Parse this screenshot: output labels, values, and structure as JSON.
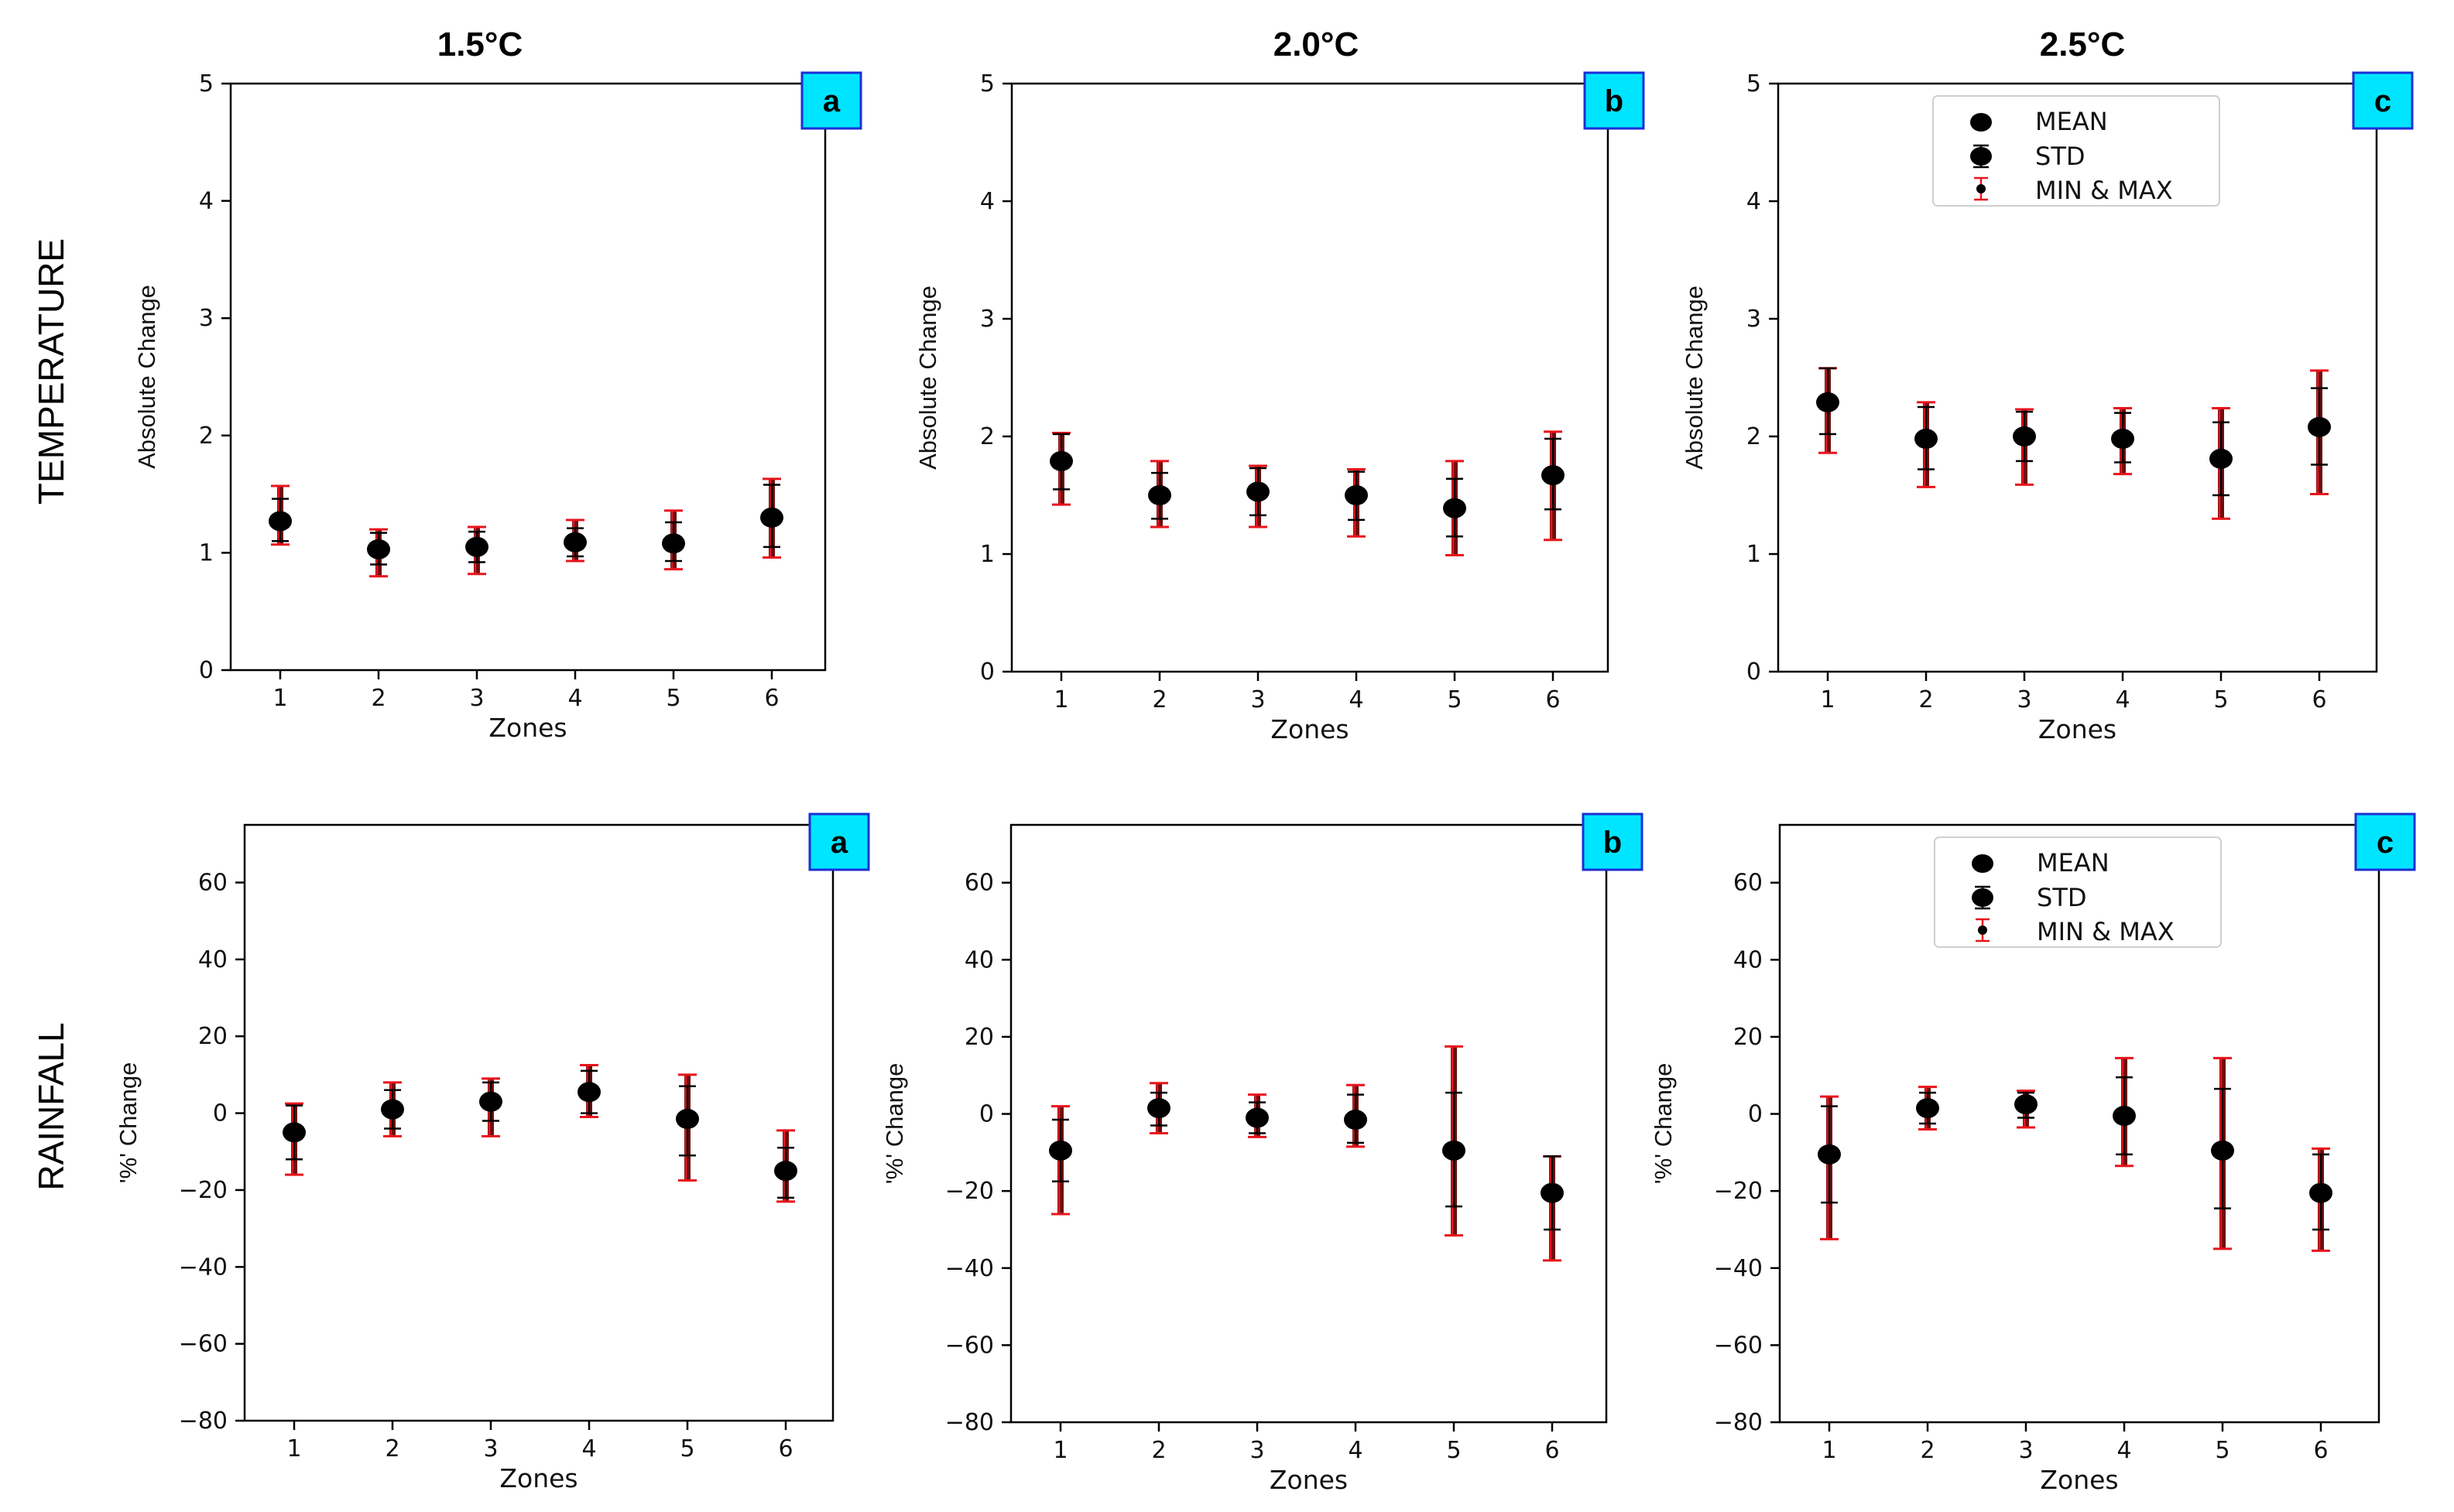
{
  "figure": {
    "column_titles": [
      "1.5°C",
      "2.0°C",
      "2.5°C"
    ],
    "row_titles": [
      "TEMPERATURE",
      "RAINFALL"
    ]
  },
  "colors": {
    "mean": "#000000",
    "std_bar": "#000000",
    "minmax_bar": "#e8141c",
    "minmax_fill": "#6b0f10",
    "badge_fill": "#00e5ff",
    "badge_border": "#1a2fd6",
    "axis": "#000000"
  },
  "legend": {
    "items": [
      "MEAN",
      "STD",
      "MIN & MAX"
    ]
  },
  "chart_data": [
    {
      "id": "temp-1.5",
      "type": "errorbar",
      "panel_letter": "a",
      "xlabel": "Zones",
      "ylabel": "Absolute Change",
      "ylim": [
        0,
        5
      ],
      "yticks": [
        0,
        1,
        2,
        3,
        4,
        5
      ],
      "x": [
        1,
        2,
        3,
        4,
        5,
        6
      ],
      "mean": [
        1.27,
        1.03,
        1.05,
        1.09,
        1.08,
        1.3
      ],
      "std_low": [
        1.1,
        0.9,
        0.92,
        0.97,
        0.93,
        1.05
      ],
      "std_high": [
        1.46,
        1.17,
        1.18,
        1.21,
        1.26,
        1.58
      ],
      "min": [
        1.07,
        0.8,
        0.82,
        0.93,
        0.86,
        0.96
      ],
      "max": [
        1.57,
        1.2,
        1.22,
        1.28,
        1.36,
        1.63
      ],
      "legend": false
    },
    {
      "id": "temp-2.0",
      "type": "errorbar",
      "panel_letter": "b",
      "xlabel": "Zones",
      "ylabel": "Absolute Change",
      "ylim": [
        0,
        5
      ],
      "yticks": [
        0,
        1,
        2,
        3,
        4,
        5
      ],
      "x": [
        1,
        2,
        3,
        4,
        5,
        6
      ],
      "mean": [
        1.79,
        1.5,
        1.53,
        1.5,
        1.39,
        1.67
      ],
      "std_low": [
        1.55,
        1.3,
        1.33,
        1.29,
        1.15,
        1.38
      ],
      "std_high": [
        2.02,
        1.69,
        1.73,
        1.7,
        1.64,
        1.98
      ],
      "min": [
        1.42,
        1.23,
        1.23,
        1.15,
        0.99,
        1.12
      ],
      "max": [
        2.03,
        1.79,
        1.75,
        1.72,
        1.79,
        2.04
      ],
      "legend": false
    },
    {
      "id": "temp-2.5",
      "type": "errorbar",
      "panel_letter": "c",
      "xlabel": "Zones",
      "ylabel": "Absolute Change",
      "ylim": [
        0,
        5
      ],
      "yticks": [
        0,
        1,
        2,
        3,
        4,
        5
      ],
      "x": [
        1,
        2,
        3,
        4,
        5,
        6
      ],
      "mean": [
        2.29,
        1.98,
        2.0,
        1.98,
        1.81,
        2.08
      ],
      "std_low": [
        2.02,
        1.72,
        1.79,
        1.78,
        1.5,
        1.76
      ],
      "std_high": [
        2.58,
        2.25,
        2.21,
        2.2,
        2.12,
        2.41
      ],
      "min": [
        1.86,
        1.57,
        1.59,
        1.68,
        1.3,
        1.51
      ],
      "max": [
        2.58,
        2.29,
        2.23,
        2.24,
        2.24,
        2.56
      ],
      "legend": true
    },
    {
      "id": "rain-1.5",
      "type": "errorbar",
      "panel_letter": "a",
      "xlabel": "Zones",
      "ylabel": "'%' Change",
      "ylim": [
        -80,
        75
      ],
      "yticks": [
        -80,
        -60,
        -40,
        -20,
        0,
        20,
        40,
        60
      ],
      "x": [
        1,
        2,
        3,
        4,
        5,
        6
      ],
      "mean": [
        -5,
        1,
        3,
        5.5,
        -1.5,
        -15
      ],
      "std_low": [
        -12,
        -4,
        -2,
        0,
        -11,
        -22
      ],
      "std_high": [
        2,
        6,
        8,
        11,
        7,
        -9
      ],
      "min": [
        -16,
        -6,
        -6,
        -1,
        -17.5,
        -23
      ],
      "max": [
        2.5,
        8,
        9,
        12.5,
        10,
        -4.5
      ],
      "legend": false
    },
    {
      "id": "rain-2.0",
      "type": "errorbar",
      "panel_letter": "b",
      "xlabel": "Zones",
      "ylabel": "'%' Change",
      "ylim": [
        -80,
        75
      ],
      "yticks": [
        -80,
        -60,
        -40,
        -20,
        0,
        20,
        40,
        60
      ],
      "x": [
        1,
        2,
        3,
        4,
        5,
        6
      ],
      "mean": [
        -9.5,
        1.5,
        -1,
        -1.5,
        -9.5,
        -20.5
      ],
      "std_low": [
        -17.5,
        -3,
        -5,
        -7.5,
        -24,
        -30
      ],
      "std_high": [
        -1.5,
        5.5,
        3,
        5,
        5.5,
        -11
      ],
      "min": [
        -26,
        -5,
        -6,
        -8.5,
        -31.5,
        -38
      ],
      "max": [
        2,
        8,
        5,
        7.5,
        17.5,
        -11
      ],
      "legend": false
    },
    {
      "id": "rain-2.5",
      "type": "errorbar",
      "panel_letter": "c",
      "xlabel": "Zones",
      "ylabel": "'%' Change",
      "ylim": [
        -80,
        75
      ],
      "yticks": [
        -80,
        -60,
        -40,
        -20,
        0,
        20,
        40,
        60
      ],
      "x": [
        1,
        2,
        3,
        4,
        5,
        6
      ],
      "mean": [
        -10.5,
        1.5,
        2.5,
        -0.5,
        -9.5,
        -20.5
      ],
      "std_low": [
        -23,
        -2.5,
        -1,
        -10.5,
        -24.5,
        -30
      ],
      "std_high": [
        2,
        5.5,
        5.5,
        9.5,
        6.5,
        -10.5
      ],
      "min": [
        -32.5,
        -4,
        -3.5,
        -13.5,
        -35,
        -35.5
      ],
      "max": [
        4.5,
        7,
        6,
        14.5,
        14.5,
        -9
      ],
      "legend": true
    }
  ]
}
